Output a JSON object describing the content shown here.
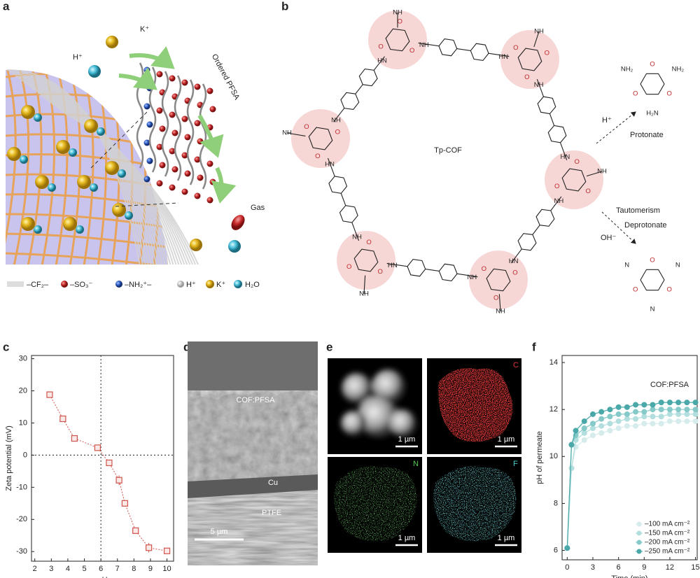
{
  "panel_labels": [
    "a",
    "b",
    "c",
    "d",
    "e",
    "f"
  ],
  "panel_a": {
    "ions": [
      "K⁺",
      "H⁺"
    ],
    "membrane_label": "Ordered PFSA",
    "gas_label": "Gas",
    "legend": [
      "–CF₂–",
      "–SO₃⁻",
      "–NH₂⁺–",
      "H⁺",
      "K⁺",
      "H₂O"
    ]
  },
  "panel_b": {
    "title": "Tp-COF",
    "protonation": {
      "reagent": "H⁺",
      "label": "Protonate"
    },
    "deprotonation": {
      "labels": [
        "Tautomerism",
        "Deprotonate"
      ],
      "reagent": "OH⁻"
    },
    "atoms": {
      "O": "O",
      "NH": "NH",
      "HN": "HN",
      "N": "N",
      "NH2": "NH₂",
      "H2N": "H₂N"
    }
  },
  "chart_data": [
    {
      "type": "scatter",
      "x": [
        2.9,
        3.7,
        4.4,
        5.8,
        6.5,
        7.1,
        7.45,
        8.1,
        8.9,
        10.0
      ],
      "values": [
        18.8,
        11.3,
        5.2,
        2.3,
        -2.4,
        -7.8,
        -15.0,
        -23.5,
        -28.8,
        -29.8
      ],
      "errors": [
        0.8,
        0.7,
        0.6,
        0.5,
        0.8,
        1.5,
        1.0,
        0.7,
        1.5,
        0.5
      ],
      "xlim": [
        1.8,
        10.4
      ],
      "ylim": [
        -33,
        31
      ],
      "xticks": [
        2,
        3,
        4,
        5,
        6,
        7,
        8,
        9,
        10
      ],
      "yticks": [
        -30,
        -20,
        -10,
        0,
        10,
        20,
        30
      ],
      "xlabel": "pH",
      "ylabel": "Zeta potential (mV)",
      "color": "#d0534c",
      "vline": 6,
      "hline": 0
    },
    {
      "type": "line",
      "annotation": "COF:PFSA",
      "x": [
        0,
        0.5,
        1,
        2,
        3,
        4,
        5,
        6,
        7,
        8,
        9,
        10,
        11,
        12,
        13,
        14,
        15
      ],
      "series": [
        {
          "name": "–100 mA cm⁻²",
          "color": "#d6ecec",
          "values": [
            6.1,
            9.5,
            10.4,
            10.7,
            10.9,
            11.0,
            11.1,
            11.2,
            11.3,
            11.3,
            11.4,
            11.4,
            11.4,
            11.5,
            11.5,
            11.5,
            11.5
          ]
        },
        {
          "name": "–150 mA cm⁻²",
          "color": "#b3dede",
          "values": [
            6.1,
            9.5,
            10.7,
            11.0,
            11.2,
            11.3,
            11.4,
            11.5,
            11.6,
            11.6,
            11.7,
            11.7,
            11.7,
            11.8,
            11.8,
            11.8,
            11.8
          ]
        },
        {
          "name": "–200 mA cm⁻²",
          "color": "#86c9c9",
          "values": [
            6.1,
            10.5,
            10.9,
            11.2,
            11.4,
            11.6,
            11.7,
            11.8,
            11.8,
            11.9,
            11.9,
            12.0,
            12.0,
            12.0,
            12.0,
            12.0,
            12.0
          ]
        },
        {
          "name": "–250 mA cm⁻²",
          "color": "#4aa8a8",
          "values": [
            6.1,
            10.5,
            11.1,
            11.5,
            11.8,
            11.9,
            12.0,
            12.1,
            12.1,
            12.2,
            12.2,
            12.2,
            12.3,
            12.3,
            12.3,
            12.3,
            12.3
          ]
        }
      ],
      "xlim": [
        -0.6,
        15.2
      ],
      "ylim": [
        5.6,
        14.3
      ],
      "xticks": [
        0,
        3,
        6,
        9,
        12,
        15
      ],
      "yticks": [
        6,
        8,
        10,
        12,
        14
      ],
      "xlabel": "Time (min)",
      "ylabel": "pH of permeate",
      "legend": "lower right"
    }
  ],
  "panel_d": {
    "labels": [
      "COF:PFSA",
      "Cu",
      "PTFE"
    ],
    "scale_bar": "5 µm"
  },
  "panel_e": {
    "element_labels": [
      "C",
      "N",
      "F"
    ],
    "scale_bar": "1 µm"
  }
}
